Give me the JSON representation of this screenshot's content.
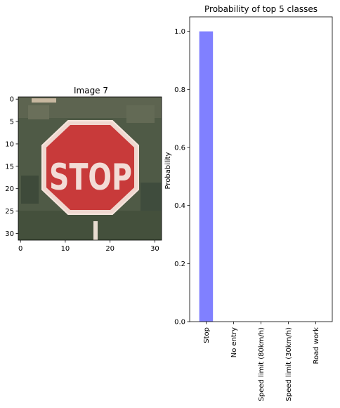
{
  "chart_data": [
    {
      "type": "image",
      "title": "Image 7",
      "image_subject": "stop sign (32x32 pixelated photo)",
      "sign_text": "STOP",
      "xlim": [
        -0.5,
        31.5
      ],
      "ylim": [
        31.5,
        -0.5
      ],
      "xticks": [
        0,
        10,
        20,
        30
      ],
      "yticks": [
        0,
        5,
        10,
        15,
        20,
        25,
        30
      ]
    },
    {
      "type": "bar",
      "title": "Probability of top 5 classes",
      "xlabel": "",
      "ylabel": "Probability",
      "categories": [
        "Stop",
        "No entry",
        "Speed limit (80km/h)",
        "Speed limit (30km/h)",
        "Road work"
      ],
      "values": [
        1.0,
        0.0,
        0.0,
        0.0,
        0.0
      ],
      "ylim": [
        0,
        1.05
      ],
      "yticks": [
        "0.0",
        "0.2",
        "0.4",
        "0.6",
        "0.8",
        "1.0"
      ],
      "bar_color": "#8080ff",
      "grid": false,
      "legend": "none"
    }
  ]
}
